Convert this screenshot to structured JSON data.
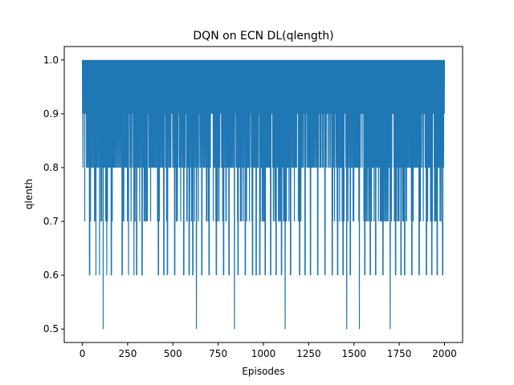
{
  "chart_data": {
    "type": "line",
    "title": "DQN on ECN DL(qlength)",
    "xlabel": "Episodes",
    "ylabel": "qlenth",
    "xlim": [
      -100,
      2100
    ],
    "ylim": [
      0.475,
      1.025
    ],
    "xticks": [
      0,
      250,
      500,
      750,
      1000,
      1250,
      1500,
      1750,
      2000
    ],
    "yticks": [
      0.5,
      0.6,
      0.7,
      0.8,
      0.9,
      1.0
    ],
    "xtick_labels": [
      "0",
      "250",
      "500",
      "750",
      "1000",
      "1250",
      "1500",
      "1750",
      "2000"
    ],
    "ytick_labels": [
      "0.5",
      "0.6",
      "0.7",
      "0.8",
      "0.9",
      "1.0"
    ],
    "grid": false,
    "series": [
      {
        "name": "qlength",
        "color": "#1f77b4",
        "x_start": 0,
        "x_end": 2000,
        "values_summary": "oscillates every episode between 1.0 and lower values (mostly 0.8-0.9, often 0.7, sometimes 0.6, rare 0.5)",
        "dips_to_0_5": [
          115,
          630,
          840,
          1120,
          1460,
          1530,
          1700
        ],
        "dips_to_0_6": [
          40,
          75,
          95,
          135,
          160,
          220,
          255,
          285,
          300,
          330,
          420,
          450,
          470,
          510,
          560,
          590,
          610,
          660,
          700,
          740,
          780,
          810,
          860,
          900,
          940,
          960,
          980,
          1010,
          1040,
          1070,
          1100,
          1150,
          1200,
          1230,
          1260,
          1300,
          1340,
          1380,
          1410,
          1440,
          1480,
          1560,
          1590,
          1620,
          1660,
          1730,
          1760,
          1780,
          1820,
          1860,
          1900,
          1930,
          1960,
          1990
        ],
        "dips_to_0_7_ranges": [
          [
            10,
            180
          ],
          [
            210,
            470
          ],
          [
            500,
            800
          ],
          [
            840,
            1220
          ],
          [
            1350,
            1990
          ]
        ],
        "dips_to_0_8_ranges": [
          [
            0,
            2000
          ]
        ]
      }
    ]
  }
}
